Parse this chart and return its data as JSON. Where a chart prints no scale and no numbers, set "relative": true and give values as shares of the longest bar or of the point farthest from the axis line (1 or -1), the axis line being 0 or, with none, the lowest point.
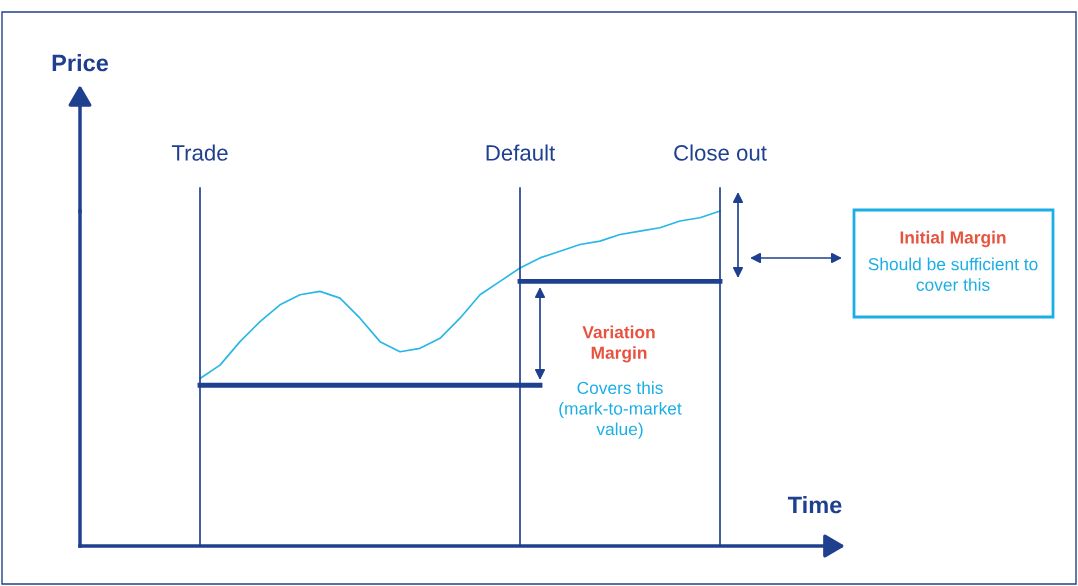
{
  "chart_data": {
    "type": "line",
    "relative": true,
    "xlabel": "Time",
    "ylabel": "Price",
    "categories": [
      null,
      null,
      null,
      null,
      null,
      null,
      "Trade",
      null,
      null,
      null,
      null,
      null,
      null,
      null,
      null,
      null,
      null,
      null,
      null,
      null,
      null,
      null,
      "Default",
      null,
      null,
      null,
      null,
      null,
      null,
      null,
      null,
      null,
      "Close out",
      null,
      null,
      null,
      null,
      null,
      null
    ],
    "series": [
      {
        "color": "#29b6e8",
        "values": [
          null,
          null,
          null,
          null,
          null,
          null,
          0.5,
          0.54,
          0.61,
          0.67,
          0.72,
          0.75,
          0.76,
          0.74,
          0.68,
          0.61,
          0.58,
          0.59,
          0.62,
          0.68,
          0.75,
          0.79,
          0.83,
          0.86,
          0.88,
          0.9,
          0.91,
          0.93,
          0.94,
          0.95,
          0.97,
          0.98,
          1.0,
          null,
          null,
          null,
          null,
          null,
          null
        ]
      },
      {
        "color": "#1f3f8f",
        "values": [
          null,
          null,
          null,
          null,
          null,
          null,
          0.48,
          0.48,
          0.48,
          0.48,
          0.48,
          0.48,
          0.48,
          0.48,
          0.48,
          0.48,
          0.48,
          0.48,
          0.48,
          0.48,
          0.48,
          0.48,
          0.48,
          0.48,
          null,
          null,
          null,
          null,
          null,
          null,
          null,
          null,
          null,
          null,
          null,
          null,
          null,
          null,
          null
        ]
      },
      {
        "color": "#1f3f8f",
        "values": [
          null,
          null,
          null,
          null,
          null,
          null,
          null,
          null,
          null,
          null,
          null,
          null,
          null,
          null,
          null,
          null,
          null,
          null,
          null,
          null,
          null,
          null,
          0.79,
          0.79,
          0.79,
          0.79,
          0.79,
          0.79,
          0.79,
          0.79,
          0.79,
          0.79,
          0.79,
          null,
          null,
          null,
          null,
          null,
          null
        ]
      }
    ],
    "ref_lines": [
      {
        "axis": "x",
        "value": "Trade",
        "color": "#1f3f8f"
      },
      {
        "axis": "x",
        "value": "Default",
        "color": "#1f3f8f"
      },
      {
        "axis": "x",
        "value": "Close out",
        "color": "#1f3f8f"
      },
      {
        "axis": "y",
        "value": 0,
        "color": "#1f3f8f"
      }
    ],
    "annotations": [
      "Variation Margin",
      "Covers this (mark-to-market value)",
      "Initial Margin",
      "Should be sufficient to cover this"
    ],
    "legend": false,
    "marker": "none",
    "line_style": "solid"
  }
}
